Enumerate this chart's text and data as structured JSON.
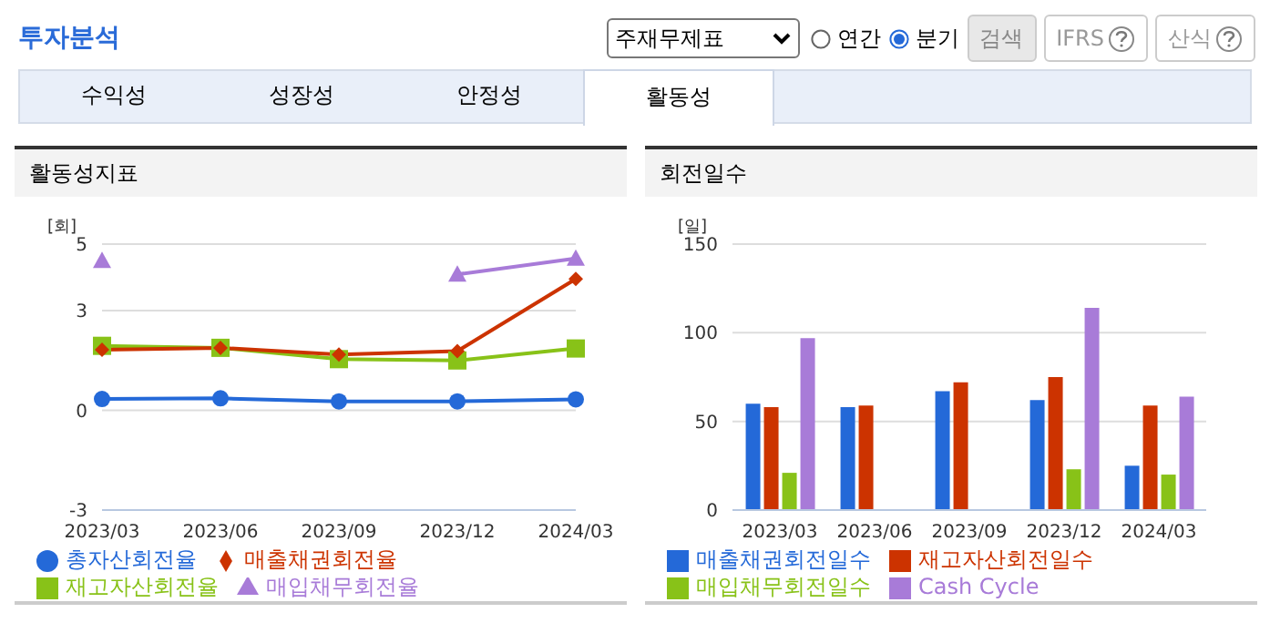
{
  "chart_data": [
    {
      "type": "other",
      "title": "투자분석",
      "annotations": [
        "주재무제표",
        "연간",
        "분기",
        "검색",
        "IFRS",
        "산식",
        "수익성",
        "성장성",
        "안정성",
        "활동성"
      ]
    },
    {
      "type": "line",
      "title": "활동성지표",
      "ylabel": "[회]",
      "categories": [
        "2023/03",
        "2023/06",
        "2023/09",
        "2023/12",
        "2024/03"
      ],
      "series": [
        {
          "name": "총자산회전율",
          "color": "#2469d8",
          "marker": "circle",
          "values": [
            0.34,
            0.36,
            0.27,
            0.27,
            0.33
          ]
        },
        {
          "name": "매출채권회전율",
          "color": "#cc3300",
          "marker": "diamond",
          "values": [
            1.82,
            1.88,
            1.68,
            1.78,
            3.95
          ]
        },
        {
          "name": "재고자산회전율",
          "color": "#88c218",
          "marker": "square",
          "values": [
            1.94,
            1.88,
            1.54,
            1.5,
            1.86
          ]
        },
        {
          "name": "매입채무회전율",
          "color": "#a87bd8",
          "marker": "triangle",
          "values": [
            4.5,
            null,
            null,
            4.09,
            4.57
          ]
        }
      ],
      "ylim": [
        -3,
        5
      ],
      "yticks": [
        -3,
        0,
        3,
        5
      ],
      "grid": "y",
      "legend": "bottom"
    },
    {
      "type": "bar",
      "title": "회전일수",
      "ylabel": "[일]",
      "categories": [
        "2023/03",
        "2023/06",
        "2023/09",
        "2023/12",
        "2024/03"
      ],
      "series": [
        {
          "name": "매출채권회전일수",
          "color": "#2469d8",
          "values": [
            60,
            58,
            67,
            62,
            25
          ]
        },
        {
          "name": "재고자산회전일수",
          "color": "#cc3300",
          "values": [
            58,
            59,
            72,
            75,
            59
          ]
        },
        {
          "name": "매입채무회전일수",
          "color": "#88c218",
          "values": [
            21,
            null,
            null,
            23,
            20
          ]
        },
        {
          "name": "Cash Cycle",
          "color": "#a87bd8",
          "values": [
            97,
            null,
            null,
            114,
            64
          ]
        }
      ],
      "ylim": [
        0,
        150
      ],
      "yticks": [
        0,
        50,
        100,
        150
      ],
      "grid": "y",
      "legend": "bottom"
    }
  ]
}
